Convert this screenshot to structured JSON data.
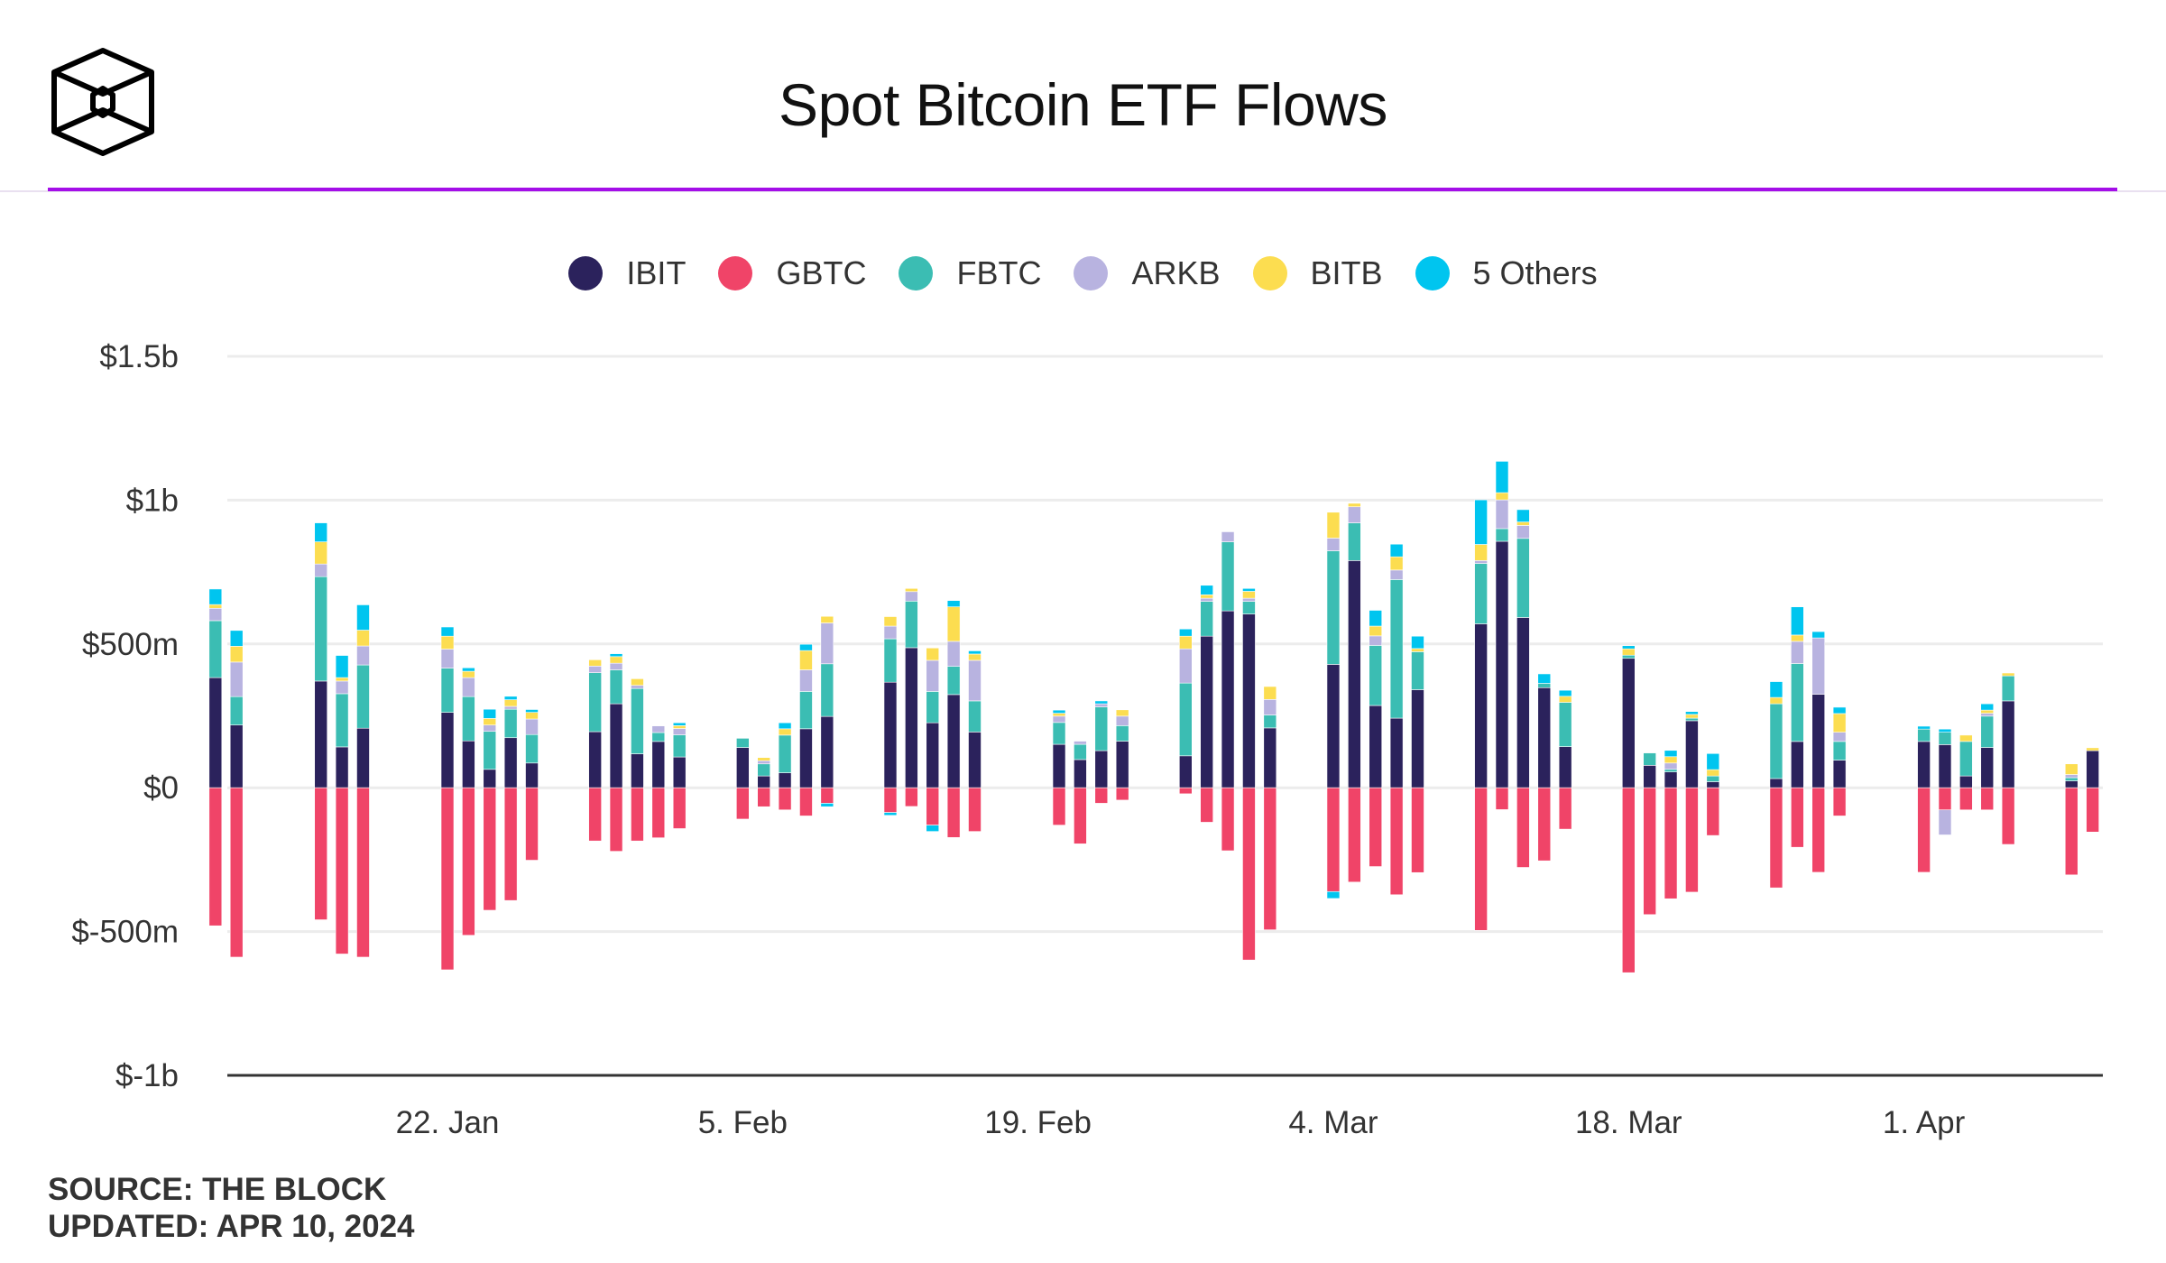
{
  "header": {
    "title": "Spot Bitcoin ETF Flows",
    "logo_icon": "the-block-cube-logo"
  },
  "legend": [
    {
      "name": "IBIT",
      "color": "#2b225c"
    },
    {
      "name": "GBTC",
      "color": "#f04468"
    },
    {
      "name": "FBTC",
      "color": "#3bbdb3"
    },
    {
      "name": "ARKB",
      "color": "#b8b3e0"
    },
    {
      "name": "BITB",
      "color": "#fcdd50"
    },
    {
      "name": "5 Others",
      "color": "#00c5ef"
    }
  ],
  "footer": {
    "source": "SOURCE: THE BLOCK",
    "updated": "UPDATED: APR 10, 2024"
  },
  "chart_data": {
    "type": "bar",
    "stacked": true,
    "title": "Spot Bitcoin ETF Flows",
    "xlabel": "",
    "ylabel": "",
    "units": "USD millions",
    "ylim": [
      -1000,
      1500
    ],
    "yticks": [
      1500,
      1000,
      500,
      0,
      -500,
      -1000
    ],
    "ytick_labels": [
      "$1.5b",
      "$1b",
      "$500m",
      "$0",
      "$-500m",
      "$-1b"
    ],
    "xtick_labels": [
      {
        "date": "2024-01-22",
        "label": "22. Jan"
      },
      {
        "date": "2024-02-05",
        "label": "5. Feb"
      },
      {
        "date": "2024-02-19",
        "label": "19. Feb"
      },
      {
        "date": "2024-03-04",
        "label": "4. Mar"
      },
      {
        "date": "2024-03-18",
        "label": "18. Mar"
      },
      {
        "date": "2024-04-01",
        "label": "1. Apr"
      }
    ],
    "grid": true,
    "legend_position": "top-center",
    "series_order": [
      "IBIT",
      "GBTC",
      "FBTC",
      "ARKB",
      "BITB",
      "5 Others"
    ],
    "dates": [
      "2024-01-11",
      "2024-01-12",
      "2024-01-16",
      "2024-01-17",
      "2024-01-18",
      "2024-01-22",
      "2024-01-23",
      "2024-01-24",
      "2024-01-25",
      "2024-01-26",
      "2024-01-29",
      "2024-01-30",
      "2024-01-31",
      "2024-02-01",
      "2024-02-02",
      "2024-02-05",
      "2024-02-06",
      "2024-02-07",
      "2024-02-08",
      "2024-02-09",
      "2024-02-12",
      "2024-02-13",
      "2024-02-14",
      "2024-02-15",
      "2024-02-16",
      "2024-02-20",
      "2024-02-21",
      "2024-02-22",
      "2024-02-23",
      "2024-02-26",
      "2024-02-27",
      "2024-02-28",
      "2024-02-29",
      "2024-03-01",
      "2024-03-04",
      "2024-03-05",
      "2024-03-06",
      "2024-03-07",
      "2024-03-08",
      "2024-03-11",
      "2024-03-12",
      "2024-03-13",
      "2024-03-14",
      "2024-03-15",
      "2024-03-18",
      "2024-03-19",
      "2024-03-20",
      "2024-03-21",
      "2024-03-22",
      "2024-03-25",
      "2024-03-26",
      "2024-03-27",
      "2024-03-28",
      "2024-04-01",
      "2024-04-02",
      "2024-04-03",
      "2024-04-04",
      "2024-04-05",
      "2024-04-08",
      "2024-04-09"
    ],
    "series": [
      {
        "name": "IBIT",
        "color": "#2b225c",
        "values": [
          383,
          218,
          371,
          142,
          207,
          262,
          163,
          64,
          174,
          86,
          195,
          292,
          118,
          161,
          107,
          140,
          41,
          52,
          205,
          248,
          367,
          487,
          226,
          324,
          194,
          151,
          98,
          129,
          162,
          111,
          527,
          615,
          604,
          208,
          429,
          790,
          286,
          242,
          341,
          570,
          857,
          592,
          348,
          143,
          450,
          78,
          55,
          233,
          21,
          32,
          161,
          325,
          96,
          161,
          150,
          41,
          140,
          302,
          24,
          129
        ]
      },
      {
        "name": "GBTC",
        "color": "#f04468",
        "values": [
          -480,
          -589,
          -459,
          -578,
          -589,
          -633,
          -513,
          -426,
          -392,
          -252,
          -185,
          -221,
          -185,
          -174,
          -142,
          -109,
          -66,
          -77,
          -98,
          -54,
          -86,
          -65,
          -130,
          -173,
          -152,
          -130,
          -195,
          -54,
          -43,
          -21,
          -120,
          -219,
          -599,
          -494,
          -361,
          -328,
          -274,
          -372,
          -295,
          -496,
          -76,
          -277,
          -254,
          -144,
          -643,
          -441,
          -386,
          -363,
          -166,
          -348,
          -207,
          -294,
          -98,
          -294,
          -77,
          -77,
          -77,
          -197,
          -303,
          -154
        ]
      },
      {
        "name": "FBTC",
        "color": "#3bbdb3",
        "values": [
          198,
          99,
          363,
          185,
          220,
          154,
          154,
          132,
          99,
          99,
          205,
          118,
          227,
          31,
          77,
          32,
          42,
          131,
          130,
          183,
          151,
          162,
          109,
          98,
          108,
          76,
          53,
          152,
          54,
          253,
          121,
          240,
          44,
          45,
          395,
          131,
          209,
          482,
          132,
          210,
          44,
          275,
          15,
          154,
          11,
          43,
          9,
          9,
          20,
          260,
          271,
          0,
          65,
          43,
          43,
          120,
          109,
          87,
          11,
          0
        ]
      },
      {
        "name": "ARKB",
        "color": "#b8b3e0",
        "values": [
          43,
          120,
          44,
          44,
          66,
          66,
          66,
          22,
          10,
          54,
          23,
          23,
          11,
          23,
          22,
          0,
          11,
          0,
          75,
          142,
          44,
          33,
          108,
          87,
          141,
          22,
          11,
          11,
          33,
          119,
          11,
          35,
          11,
          54,
          44,
          56,
          33,
          33,
          0,
          10,
          100,
          45,
          0,
          0,
          0,
          0,
          22,
          0,
          0,
          0,
          77,
          196,
          32,
          0,
          -87,
          0,
          10,
          0,
          11,
          0
        ]
      },
      {
        "name": "BITB",
        "color": "#fcdd50",
        "values": [
          13,
          55,
          77,
          12,
          55,
          45,
          22,
          23,
          23,
          23,
          22,
          23,
          23,
          0,
          10,
          0,
          11,
          22,
          67,
          23,
          33,
          11,
          43,
          120,
          22,
          10,
          0,
          0,
          22,
          44,
          12,
          0,
          24,
          45,
          90,
          12,
          34,
          46,
          11,
          56,
          25,
          12,
          0,
          21,
          22,
          0,
          22,
          13,
          22,
          22,
          22,
          0,
          65,
          0,
          0,
          22,
          11,
          10,
          37,
          10
        ]
      },
      {
        "name": "5 Others",
        "color": "#00c5ef",
        "values": [
          54,
          55,
          66,
          77,
          88,
          32,
          12,
          32,
          12,
          10,
          0,
          10,
          0,
          0,
          10,
          0,
          0,
          21,
          22,
          -12,
          -10,
          0,
          -22,
          22,
          11,
          11,
          0,
          10,
          0,
          25,
          33,
          0,
          10,
          0,
          -24,
          0,
          55,
          44,
          43,
          155,
          109,
          43,
          33,
          21,
          11,
          0,
          22,
          10,
          56,
          55,
          98,
          22,
          22,
          10,
          11,
          0,
          22,
          0,
          0,
          0
        ]
      }
    ]
  }
}
